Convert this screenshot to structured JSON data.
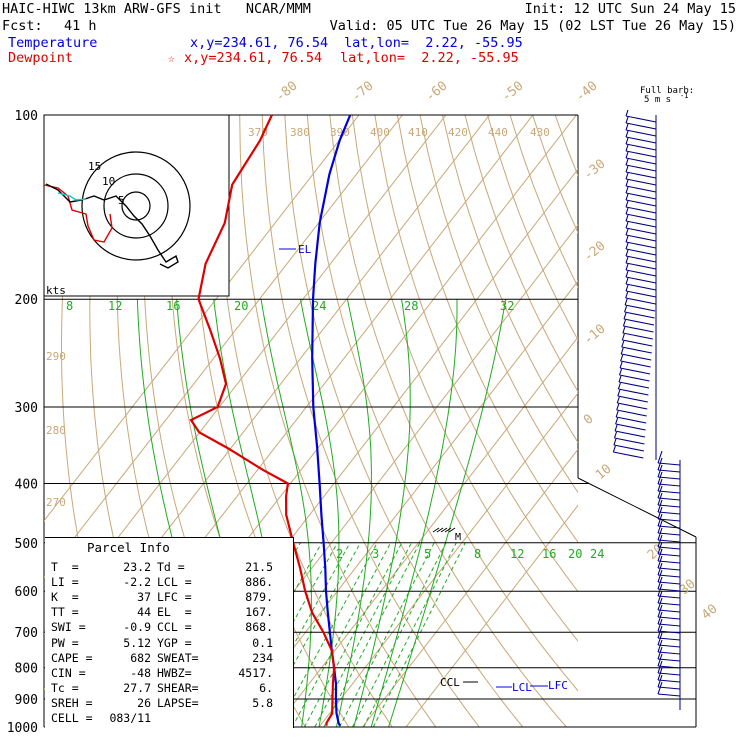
{
  "header": {
    "title": "HAIC-HIWC 13km ARW-GFS init   NCAR/MMM",
    "init": "Init: 12 UTC Sun 24 May 15",
    "fcst_label": "Fcst:",
    "fcst_value": "41 h",
    "valid": "Valid: 05 UTC Tue 26 May 15 (02 LST Tue 26 May 15)"
  },
  "legend": {
    "temperature": {
      "label": "Temperature",
      "xy": "x,y=234.61, 76.54",
      "latlon": "lat,lon=  2.22, -55.95",
      "color": "#0000dd"
    },
    "dewpoint": {
      "label": "Dewpoint",
      "marker": "☆",
      "xy": "x,y=234.61, 76.54",
      "latlon": "lat,lon=  2.22, -55.95",
      "color": "#dd0000"
    }
  },
  "wind": {
    "barb_key_1": "Full barb:",
    "barb_key_2": "5 m s",
    "barb_key_sup": "-1"
  },
  "hodograph": {
    "unit": "kts",
    "rings": [
      "5",
      "10",
      "15"
    ]
  },
  "parcel": {
    "title": "Parcel Info",
    "rows": [
      [
        "T  =",
        "23.2",
        "Td =",
        "21.5"
      ],
      [
        "LI =",
        "-2.2",
        "LCL =",
        "886."
      ],
      [
        "K  =",
        "37",
        "LFC =",
        "879."
      ],
      [
        "TT =",
        "44",
        "EL  =",
        "167."
      ],
      [
        "SWI =",
        "-0.9",
        "CCL =",
        "868."
      ],
      [
        "PW =",
        "5.12",
        "YGP =",
        "0.1"
      ],
      [
        "CAPE =",
        "682",
        "SWEAT=",
        "234"
      ],
      [
        "CIN =",
        "-48",
        "HWBZ=",
        "4517."
      ],
      [
        "Tc =",
        "27.7",
        "SHEAR=",
        "6."
      ],
      [
        "SREH =",
        "26",
        "LAPSE=",
        "5.8"
      ],
      [
        "CELL =",
        "083/11",
        "",
        ""
      ]
    ]
  },
  "levels": {
    "EL": "EL",
    "CCL": "CCL",
    "LCL": "LCL",
    "LFC": "LFC",
    "M": "M"
  },
  "chart_data": {
    "type": "line",
    "chart_kind": "skew-T log-p sounding",
    "y_axis": {
      "label": "pressure (hPa)",
      "scale": "log",
      "ylim": [
        1000,
        100
      ],
      "ticks": [
        100,
        200,
        300,
        400,
        500,
        600,
        700,
        800,
        900,
        1000
      ]
    },
    "isotherm_labels": [
      "-80",
      "-70",
      "-60",
      "-50",
      "-40",
      "-30",
      "-20",
      "-10",
      "0",
      "10",
      "20",
      "30",
      "40"
    ],
    "isotherms_c": [
      -80,
      -70,
      -60,
      -50,
      -40,
      -30,
      -20,
      -10,
      0,
      10,
      20,
      30,
      40
    ],
    "theta_labels": [
      "370",
      "380",
      "390",
      "400",
      "410",
      "420",
      "430",
      "440",
      "290",
      "280",
      "270"
    ],
    "theta_e_labels": [
      "8",
      "12",
      "16",
      "20",
      "24",
      "28",
      "32"
    ],
    "mixing_ratio_labels": [
      "2",
      "3",
      "5",
      "8",
      "12",
      "16",
      "20",
      "24"
    ],
    "series": [
      {
        "name": "Temperature",
        "color": "#0000dd",
        "p": [
          995,
          985,
          950,
          900,
          850,
          800,
          750,
          700,
          650,
          600,
          550,
          500,
          450,
          400,
          350,
          300,
          250,
          200,
          175,
          150,
          125,
          110,
          100
        ],
        "t": [
          24.6,
          23.8,
          21.6,
          18.9,
          16.2,
          12.9,
          9.3,
          5.6,
          1.6,
          -2.6,
          -6.9,
          -11.8,
          -17.3,
          -23.3,
          -30.2,
          -38.4,
          -47.3,
          -57.7,
          -63.5,
          -69.8,
          -76.2,
          -79.9,
          -82
        ]
      },
      {
        "name": "Dewpoint",
        "color": "#dd0000",
        "p": [
          995,
          985,
          950,
          900,
          850,
          800,
          750,
          700,
          650,
          600,
          550,
          500,
          450,
          420,
          400,
          380,
          350,
          330,
          315,
          300,
          275,
          250,
          225,
          200,
          175,
          150,
          130,
          110,
          100
        ],
        "t": [
          21.5,
          21.0,
          20.6,
          18.1,
          15.5,
          12.9,
          9.3,
          4.1,
          -2.0,
          -7.4,
          -12.7,
          -18.8,
          -25.4,
          -28.7,
          -30.6,
          -38.8,
          -50.8,
          -60.1,
          -64.2,
          -60.4,
          -62.6,
          -68.5,
          -75.7,
          -84.0,
          -88.7,
          -91.6,
          -96.7,
          -98.2,
          -100
        ]
      }
    ]
  }
}
